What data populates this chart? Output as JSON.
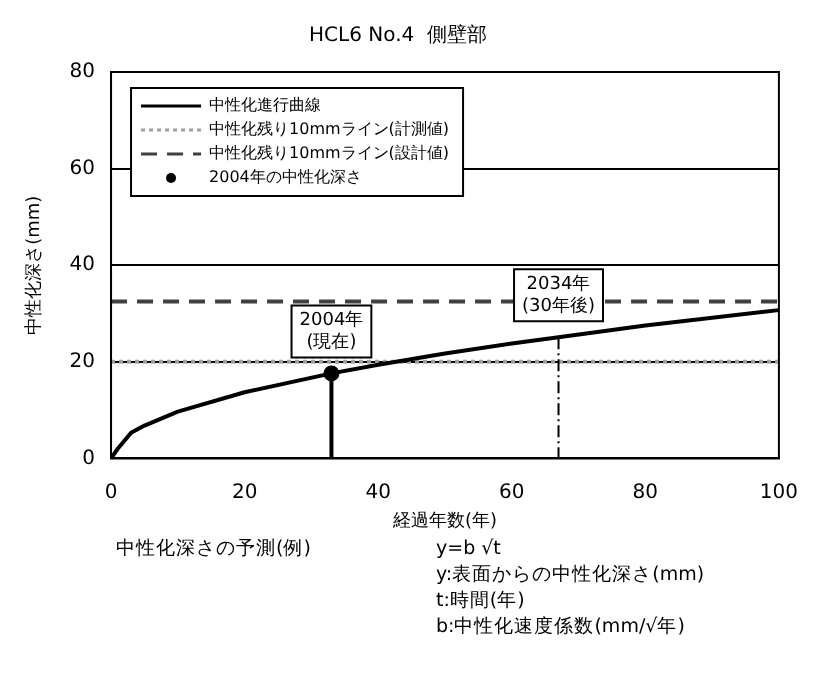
{
  "chart_data": {
    "type": "line",
    "title": "HCL6 No.4  側壁部",
    "xlabel": "経過年数(年)",
    "ylabel": "中性化深さ(mm)",
    "xlim": [
      0,
      100
    ],
    "xticks": [
      0,
      20,
      40,
      60,
      80,
      100
    ],
    "ylim": [
      0,
      80
    ],
    "yticks": [
      0,
      20,
      40,
      60,
      80
    ],
    "grid": "y",
    "legend": "top left",
    "series": [
      {
        "name": "中性化進行曲線",
        "color": "#000000",
        "line_style": "solid",
        "marker": "none",
        "x": [
          0,
          1,
          3,
          5,
          10,
          20,
          33,
          40,
          50,
          60,
          67,
          80,
          100
        ],
        "values": [
          0,
          2,
          5.3,
          6.8,
          9.7,
          13.7,
          17.6,
          19.4,
          21.7,
          23.8,
          25.1,
          27.5,
          30.7
        ]
      },
      {
        "name": "中性化残り10mmライン(計測値)",
        "type": "line",
        "color": "#a0a0a0",
        "line_style": "dotted",
        "marker": "none",
        "x": [
          0,
          100
        ],
        "values": [
          20,
          20
        ]
      },
      {
        "name": "中性化残り10mmライン(設計値)",
        "type": "line",
        "color": "#404040",
        "line_style": "dashed",
        "marker": "none",
        "x": [
          0,
          100
        ],
        "values": [
          32.5,
          32.5
        ]
      },
      {
        "name": "2004年の中性化深さ",
        "type": "scatter",
        "color": "#000000",
        "marker": "circle",
        "x": [
          33
        ],
        "values": [
          17.6
        ]
      }
    ],
    "annotations": [
      {
        "text": "2004年\n(現在)",
        "x": 33,
        "y": 17.6
      },
      {
        "text": "2034年\n(30年後)",
        "x": 67,
        "y": 25.1
      },
      "中性化深さの予測(例)",
      "y=b √t",
      "y:表面からの中性化深さ(mm)",
      "t:時間(年)",
      "b:中性化速度係数(mm/√年)"
    ]
  }
}
